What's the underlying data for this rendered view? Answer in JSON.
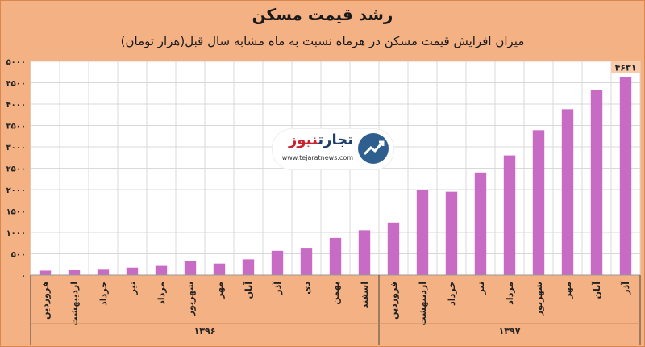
{
  "header": {
    "title": "رشد قیمت مسکن",
    "subtitle": "میزان افزایش قیمت مسکن در هرماه نسبت به ماه مشابه سال قبل(هزار تومان)"
  },
  "watermark": {
    "brand_main": "تجارت",
    "brand_accent": "نیوز",
    "url": "www.tejaratnews.com"
  },
  "colors": {
    "background": "#f4b183",
    "plot_background": "#ffffff",
    "bar": "#c86bc4",
    "grid": "#d9d9d9"
  },
  "chart_data": {
    "type": "bar",
    "title": "رشد قیمت مسکن",
    "subtitle": "میزان افزایش قیمت مسکن در هرماه نسبت به ماه مشابه سال قبل(هزار تومان)",
    "ylim": [
      0,
      5000
    ],
    "yticks": [
      "۰",
      "۵۰۰",
      "۱۰۰۰",
      "۱۵۰۰",
      "۲۰۰۰",
      "۲۵۰۰",
      "۳۰۰۰",
      "۳۵۰۰",
      "۴۰۰۰",
      "۴۵۰۰",
      "۵۰۰۰"
    ],
    "grid": true,
    "categories": [
      "فروردین",
      "اردیبهشت",
      "خرداد",
      "تیر",
      "مرداد",
      "شهریور",
      "مهر",
      "آبان",
      "آذر",
      "دی",
      "بهمن",
      "اسفند",
      "فروردین",
      "اردیبهشت",
      "خرداد",
      "تیر",
      "مرداد",
      "شهریور",
      "مهر",
      "آبان",
      "آذر"
    ],
    "values": [
      105,
      130,
      145,
      175,
      215,
      325,
      270,
      370,
      570,
      640,
      870,
      1050,
      1230,
      1990,
      1950,
      2400,
      2800,
      3390,
      3880,
      4330,
      4631
    ],
    "groups": [
      {
        "label": "۱۳۹۶",
        "count": 12
      },
      {
        "label": "۱۳۹۷",
        "count": 9
      }
    ],
    "data_labels": [
      {
        "index": 20,
        "text": "۴۶۳۱"
      }
    ]
  }
}
